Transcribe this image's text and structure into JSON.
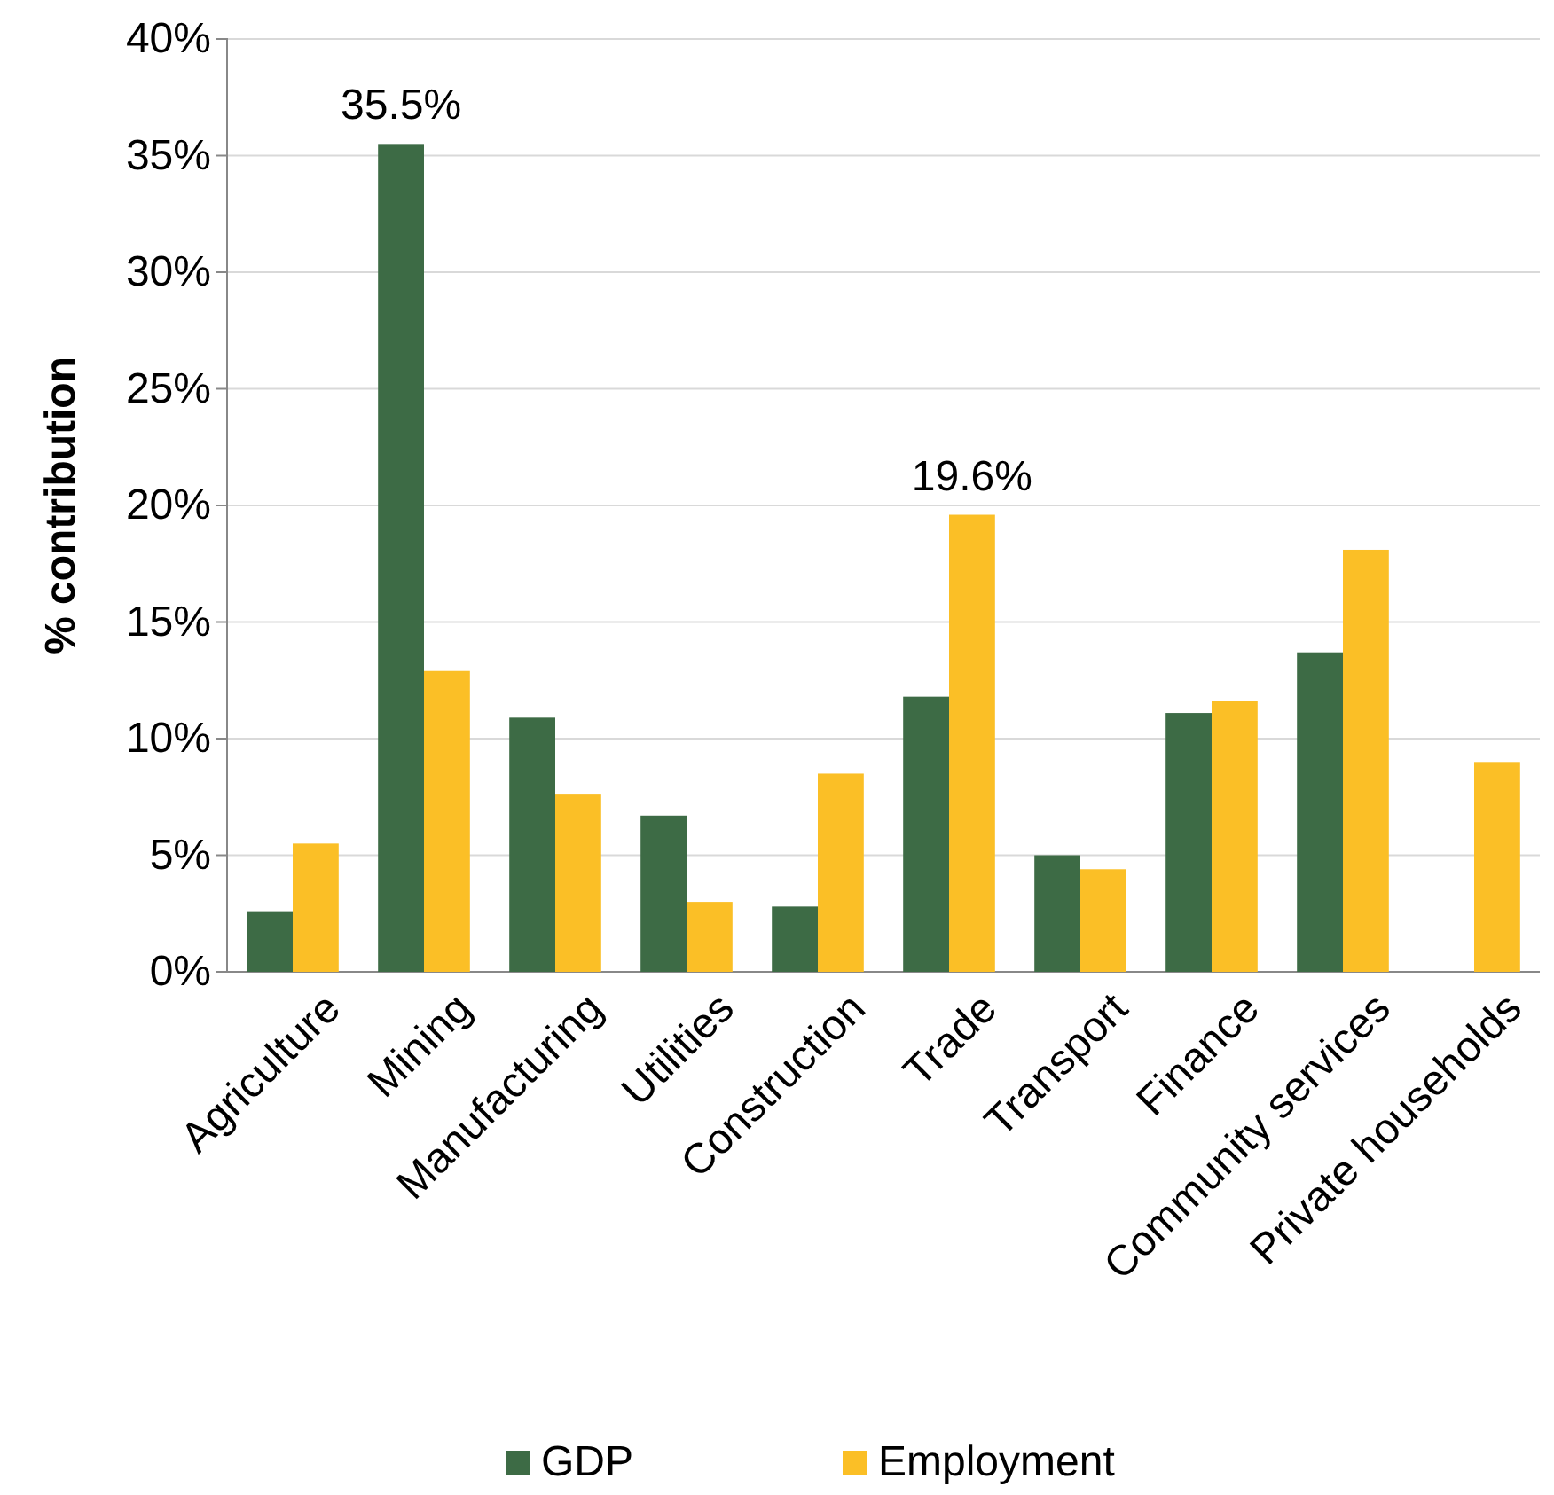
{
  "chart_data": {
    "type": "bar",
    "ylabel": "% contribution",
    "categories": [
      "Agriculture",
      "Mining",
      "Manufacturing",
      "Utilities",
      "Construction",
      "Trade",
      "Transport",
      "Finance",
      "Community services",
      "Private households"
    ],
    "series": [
      {
        "name": "GDP",
        "color": "#3d6b45",
        "values": [
          2.6,
          35.5,
          10.9,
          6.7,
          2.8,
          11.8,
          5.0,
          11.1,
          13.7,
          null
        ],
        "value_labels": [
          null,
          "35.5%",
          null,
          null,
          null,
          null,
          null,
          null,
          null,
          null
        ]
      },
      {
        "name": "Employment",
        "color": "#fbbf26",
        "values": [
          5.5,
          12.9,
          7.6,
          3.0,
          8.5,
          19.6,
          4.4,
          11.6,
          18.1,
          9.0
        ],
        "value_labels": [
          null,
          null,
          null,
          null,
          null,
          "19.6%",
          null,
          null,
          null,
          null
        ]
      }
    ],
    "ylim": [
      0,
      40
    ],
    "yticks": [
      {
        "value": 0,
        "label": "0%"
      },
      {
        "value": 5,
        "label": "5%"
      },
      {
        "value": 10,
        "label": "10%"
      },
      {
        "value": 15,
        "label": "15%"
      },
      {
        "value": 20,
        "label": "20%"
      },
      {
        "value": 25,
        "label": "25%"
      },
      {
        "value": 30,
        "label": "30%"
      },
      {
        "value": 35,
        "label": "35%"
      },
      {
        "value": 40,
        "label": "40%"
      }
    ],
    "grid": "y",
    "legend": "bottom"
  }
}
